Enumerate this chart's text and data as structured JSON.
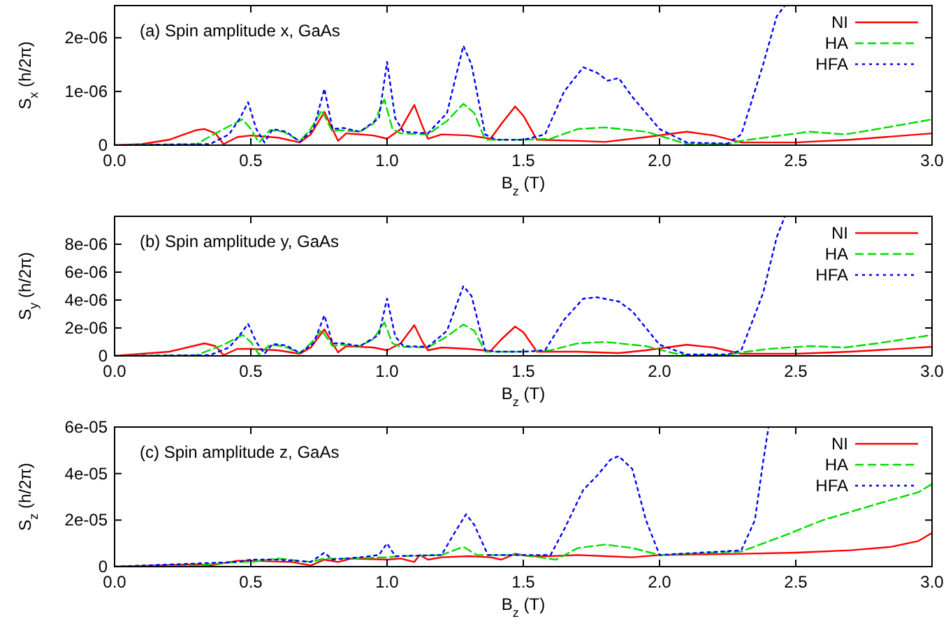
{
  "chart_data": [
    {
      "type": "line",
      "title": "(a) Spin amplitude x, GaAs",
      "xlabel": "B$_{z}$ (T)",
      "ylabel": "S$_{x}$ (h/2π)",
      "xlim": [
        0,
        3
      ],
      "xticks": [
        {
          "value": 0,
          "label": "0.0"
        },
        0.5,
        {
          "value": 1,
          "label": "1.0"
        },
        1.5,
        {
          "value": 2,
          "label": "2.0"
        },
        2.5,
        {
          "value": 3,
          "label": "3.0"
        }
      ],
      "ylim": [
        0,
        2.6e-06
      ],
      "yticks": [
        {
          "value": 0,
          "label": "0"
        },
        {
          "value": 1e-06,
          "label": "1e-06"
        },
        {
          "value": 2e-06,
          "label": "2e-06"
        }
      ],
      "legend": "top right",
      "series": [
        {
          "name": "NI",
          "color": "#ff0000",
          "line_style": "solid",
          "x": [
            0,
            0.1,
            0.2,
            0.3,
            0.33,
            0.37,
            0.4,
            0.45,
            0.5,
            0.6,
            0.68,
            0.72,
            0.77,
            0.8,
            0.82,
            0.85,
            0.95,
            1.0,
            1.05,
            1.1,
            1.13,
            1.15,
            1.2,
            1.3,
            1.38,
            1.42,
            1.47,
            1.5,
            1.55,
            1.7,
            1.8,
            1.95,
            2.1,
            2.2,
            2.3,
            2.5,
            2.7,
            3.0
          ],
          "values": [
            0,
            2e-08,
            1e-07,
            2.8e-07,
            3e-07,
            2.2e-07,
            2e-08,
            1.5e-07,
            1.8e-07,
            1.4e-07,
            5e-08,
            2e-07,
            6.2e-07,
            3e-07,
            8e-08,
            2.2e-07,
            1.8e-07,
            1.2e-07,
            3e-07,
            7.5e-07,
            3.5e-07,
            1.2e-07,
            2e-07,
            1.8e-07,
            1.2e-07,
            4e-07,
            7.2e-07,
            5.5e-07,
            1e-07,
            8e-08,
            6e-08,
            1.5e-07,
            2.5e-07,
            1.8e-07,
            5e-08,
            5e-08,
            1e-07,
            2.2e-07
          ]
        },
        {
          "name": "HA",
          "color": "#00dd00",
          "line_style": "dashed",
          "x": [
            0,
            0.3,
            0.4,
            0.47,
            0.5,
            0.53,
            0.57,
            0.62,
            0.68,
            0.72,
            0.76,
            0.8,
            0.82,
            0.9,
            0.95,
            0.99,
            1.02,
            1.05,
            1.15,
            1.22,
            1.28,
            1.32,
            1.36,
            1.5,
            1.6,
            1.7,
            1.8,
            1.95,
            2.05,
            2.1,
            2.25,
            2.3,
            2.4,
            2.55,
            2.68,
            2.8,
            3.0
          ],
          "values": [
            0,
            2e-08,
            3e-07,
            4.8e-07,
            3e-07,
            5e-08,
            2.8e-07,
            2.5e-07,
            8e-08,
            3e-07,
            6.5e-07,
            2.5e-07,
            2.8e-07,
            2.5e-07,
            4e-07,
            8.5e-07,
            3e-07,
            2.2e-07,
            2e-07,
            4.5e-07,
            7.7e-07,
            6e-07,
            1e-07,
            1e-07,
            1.2e-07,
            3e-07,
            3.3e-07,
            2.5e-07,
            1e-07,
            2e-08,
            2e-08,
            8e-08,
            1.5e-07,
            2.5e-07,
            2e-07,
            3e-07,
            4.8e-07
          ]
        },
        {
          "name": "HFA",
          "color": "#0000ff",
          "line_style": "dotted",
          "x": [
            0,
            0.35,
            0.42,
            0.46,
            0.49,
            0.52,
            0.55,
            0.58,
            0.63,
            0.68,
            0.73,
            0.77,
            0.8,
            0.84,
            0.9,
            0.97,
            1.0,
            1.03,
            1.06,
            1.15,
            1.22,
            1.28,
            1.31,
            1.36,
            1.4,
            1.5,
            1.58,
            1.65,
            1.72,
            1.77,
            1.81,
            1.85,
            1.9,
            2.0,
            2.1,
            2.25,
            2.3,
            2.38,
            2.43,
            2.46
          ],
          "values": [
            0,
            2e-08,
            2e-07,
            5e-07,
            8e-07,
            3e-07,
            5e-08,
            3e-07,
            2.5e-07,
            6e-08,
            3e-07,
            1.05e-06,
            3e-07,
            3.2e-07,
            2.5e-07,
            5e-07,
            1.55e-06,
            5e-07,
            2.5e-07,
            2.2e-07,
            6e-07,
            1.85e-06,
            1.5e-06,
            2e-07,
            1e-07,
            1e-07,
            2e-07,
            1e-06,
            1.45e-06,
            1.35e-06,
            1.2e-06,
            1.25e-06,
            9e-07,
            3e-07,
            5e-08,
            3e-08,
            2e-07,
            1.5e-06,
            2.4e-06,
            2.6e-06
          ]
        }
      ]
    },
    {
      "type": "line",
      "title": "(b) Spin amplitude y, GaAs",
      "xlabel": "B$_{z}$ (T)",
      "ylabel": "S$_{y}$ (h/2π)",
      "xlim": [
        0,
        3
      ],
      "xticks": [
        {
          "value": 0,
          "label": "0.0"
        },
        0.5,
        {
          "value": 1,
          "label": "1.0"
        },
        1.5,
        {
          "value": 2,
          "label": "2.0"
        },
        2.5,
        {
          "value": 3,
          "label": "3.0"
        }
      ],
      "ylim": [
        0,
        1e-05
      ],
      "yticks": [
        {
          "value": 0,
          "label": "0"
        },
        {
          "value": 2e-06,
          "label": "2e-06"
        },
        {
          "value": 4e-06,
          "label": "4e-06"
        },
        {
          "value": 6e-06,
          "label": "6e-06"
        },
        {
          "value": 8e-06,
          "label": "8e-06"
        }
      ],
      "legend": "top right",
      "series": [
        {
          "name": "NI",
          "color": "#ff0000",
          "line_style": "solid",
          "x": [
            0,
            0.2,
            0.33,
            0.37,
            0.4,
            0.45,
            0.5,
            0.6,
            0.68,
            0.72,
            0.77,
            0.8,
            0.82,
            0.85,
            0.95,
            1.0,
            1.05,
            1.1,
            1.13,
            1.15,
            1.2,
            1.3,
            1.38,
            1.42,
            1.47,
            1.5,
            1.55,
            1.7,
            1.85,
            1.95,
            2.1,
            2.2,
            2.3,
            2.5,
            2.7,
            3.0
          ],
          "values": [
            0,
            3e-07,
            9e-07,
            7e-07,
            5e-08,
            5e-07,
            5e-07,
            4e-07,
            1.5e-07,
            6e-07,
            1.9e-06,
            9e-07,
            2.5e-07,
            7e-07,
            6e-07,
            4e-07,
            9e-07,
            2.2e-06,
            1e-06,
            4e-07,
            6e-07,
            5e-07,
            3.5e-07,
            1.2e-06,
            2.1e-06,
            1.7e-06,
            3e-07,
            3e-07,
            2e-07,
            4e-07,
            8e-07,
            6e-07,
            1.5e-07,
            1.5e-07,
            3e-07,
            6.5e-07
          ]
        },
        {
          "name": "HA",
          "color": "#00dd00",
          "line_style": "dashed",
          "x": [
            0,
            0.3,
            0.4,
            0.47,
            0.5,
            0.53,
            0.57,
            0.62,
            0.68,
            0.72,
            0.76,
            0.8,
            0.83,
            0.9,
            0.95,
            0.99,
            1.02,
            1.05,
            1.15,
            1.22,
            1.28,
            1.32,
            1.36,
            1.5,
            1.6,
            1.7,
            1.8,
            1.95,
            2.05,
            2.1,
            2.25,
            2.3,
            2.4,
            2.55,
            2.68,
            2.8,
            3.0
          ],
          "values": [
            0,
            5e-08,
            8e-07,
            1.5e-06,
            1e-06,
            1e-07,
            8e-07,
            7e-07,
            2e-07,
            9e-07,
            1.85e-06,
            7e-07,
            8e-07,
            7e-07,
            1.2e-06,
            2.4e-06,
            9e-07,
            6.5e-07,
            6e-07,
            1.4e-06,
            2.25e-06,
            1.8e-06,
            3e-07,
            3e-07,
            4e-07,
            9e-07,
            1e-06,
            7e-07,
            2e-07,
            5e-08,
            5e-08,
            2.5e-07,
            5e-07,
            7e-07,
            6e-07,
            9e-07,
            1.5e-06
          ]
        },
        {
          "name": "HFA",
          "color": "#0000ff",
          "line_style": "dotted",
          "x": [
            0,
            0.35,
            0.42,
            0.46,
            0.49,
            0.52,
            0.55,
            0.58,
            0.63,
            0.68,
            0.73,
            0.77,
            0.8,
            0.84,
            0.9,
            0.97,
            1.0,
            1.03,
            1.06,
            1.15,
            1.22,
            1.28,
            1.31,
            1.36,
            1.4,
            1.5,
            1.58,
            1.65,
            1.72,
            1.77,
            1.85,
            1.9,
            2.0,
            2.1,
            2.25,
            2.3,
            2.38,
            2.43,
            2.46
          ],
          "values": [
            0,
            5e-08,
            6e-07,
            1.5e-06,
            2.3e-06,
            1e-06,
            1.5e-07,
            8.5e-07,
            7.5e-07,
            2e-07,
            9e-07,
            2.9e-06,
            9e-07,
            9e-07,
            7e-07,
            1.5e-06,
            4.1e-06,
            1.4e-06,
            7e-07,
            6.5e-07,
            1.8e-06,
            5e-06,
            4.3e-06,
            4e-07,
            3e-07,
            3e-07,
            4e-07,
            2.6e-06,
            4.1e-06,
            4.2e-06,
            3.9e-06,
            3.2e-06,
            8e-07,
            1e-07,
            1e-07,
            4e-07,
            4.5e-06,
            8.5e-06,
            1e-05
          ]
        }
      ]
    },
    {
      "type": "line",
      "title": "(c) Spin amplitude z, GaAs",
      "xlabel": "B$_{z}$ (T)",
      "ylabel": "S$_{z}$ (h/2π)",
      "xlim": [
        0,
        3
      ],
      "xticks": [
        {
          "value": 0,
          "label": "0.0"
        },
        0.5,
        {
          "value": 1,
          "label": "1.0"
        },
        1.5,
        {
          "value": 2,
          "label": "2.0"
        },
        2.5,
        {
          "value": 3,
          "label": "3.0"
        }
      ],
      "ylim": [
        0,
        6e-05
      ],
      "yticks": [
        {
          "value": 0,
          "label": "0"
        },
        {
          "value": 2e-05,
          "label": "2e-05"
        },
        {
          "value": 4e-05,
          "label": "4e-05"
        },
        {
          "value": 6e-05,
          "label": "6e-05"
        }
      ],
      "legend": "top right",
      "series": [
        {
          "name": "NI",
          "color": "#ff0000",
          "line_style": "solid",
          "x": [
            0,
            0.3,
            0.35,
            0.45,
            0.5,
            0.65,
            0.72,
            0.77,
            0.82,
            0.87,
            1.0,
            1.05,
            1.1,
            1.12,
            1.15,
            1.2,
            1.3,
            1.38,
            1.42,
            1.47,
            1.52,
            1.6,
            1.7,
            1.8,
            1.9,
            2.0,
            2.3,
            2.5,
            2.7,
            2.85,
            2.95,
            3.0
          ],
          "values": [
            0,
            1e-06,
            5e-07,
            2.5e-06,
            2.5e-06,
            2e-06,
            5e-07,
            3e-06,
            2e-06,
            3.5e-06,
            3e-06,
            3.5e-06,
            2e-06,
            5e-06,
            3e-06,
            4e-06,
            4.5e-06,
            4e-06,
            3e-06,
            5.5e-06,
            4.5e-06,
            4.5e-06,
            5e-06,
            4.5e-06,
            4e-06,
            5e-06,
            5.5e-06,
            6e-06,
            7e-06,
            8.5e-06,
            1.1e-05,
            1.45e-05
          ]
        },
        {
          "name": "HA",
          "color": "#00dd00",
          "line_style": "dashed",
          "x": [
            0,
            0.3,
            0.45,
            0.5,
            0.6,
            0.72,
            0.77,
            0.85,
            1.0,
            1.05,
            1.2,
            1.28,
            1.33,
            1.5,
            1.62,
            1.7,
            1.8,
            1.9,
            2.0,
            2.3,
            2.45,
            2.6,
            2.8,
            2.95,
            3.0
          ],
          "values": [
            0,
            5e-07,
            2e-06,
            2e-06,
            3.5e-06,
            2e-06,
            3.5e-06,
            3.5e-06,
            4e-06,
            4.5e-06,
            5e-06,
            8.5e-06,
            5e-06,
            5e-06,
            3e-06,
            8e-06,
            9.5e-06,
            8e-06,
            5e-06,
            6.5e-06,
            1.3e-05,
            2e-05,
            2.7e-05,
            3.2e-05,
            3.55e-05
          ]
        },
        {
          "name": "HFA",
          "color": "#0000ff",
          "line_style": "dotted",
          "x": [
            0,
            0.45,
            0.5,
            0.6,
            0.72,
            0.77,
            0.8,
            0.9,
            0.97,
            1.0,
            1.03,
            1.2,
            1.25,
            1.29,
            1.32,
            1.37,
            1.5,
            1.6,
            1.65,
            1.72,
            1.77,
            1.82,
            1.85,
            1.9,
            1.95,
            2.0,
            2.3,
            2.35,
            2.38,
            2.4
          ],
          "values": [
            0,
            2e-06,
            3e-06,
            3e-06,
            2e-06,
            6e-06,
            3e-06,
            4e-06,
            5e-06,
            1e-05,
            4.5e-06,
            5e-06,
            1.5e-05,
            2.25e-05,
            1.8e-05,
            5e-06,
            5e-06,
            5e-06,
            1.6e-05,
            3.3e-05,
            3.9e-05,
            4.6e-05,
            4.75e-05,
            4.2e-05,
            2e-05,
            5e-06,
            7e-06,
            2e-05,
            4.5e-05,
            6e-05
          ]
        }
      ]
    }
  ]
}
